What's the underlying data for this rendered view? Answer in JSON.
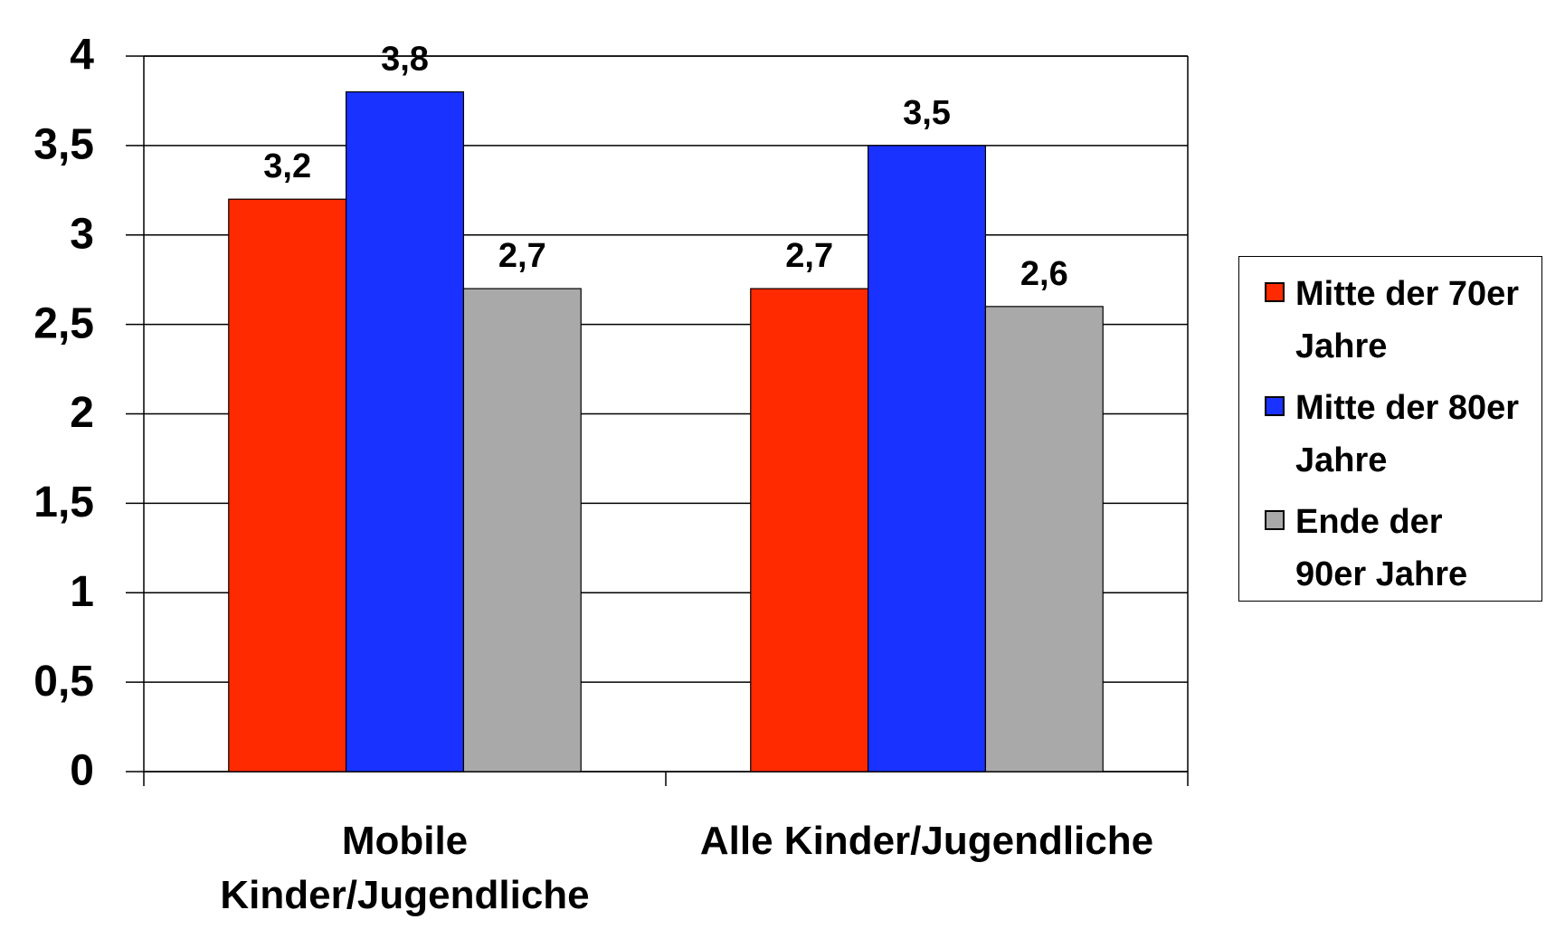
{
  "chart_data": {
    "type": "bar",
    "categories": [
      "Mobile Kinder/Jugendliche",
      "Alle Kinder/Jugendliche"
    ],
    "series": [
      {
        "name": "Mitte der 70er Jahre",
        "color": "#ff2a00",
        "values": [
          3.2,
          2.7
        ],
        "value_labels": [
          "3,2",
          "2,7"
        ]
      },
      {
        "name": "Mitte der 80er Jahre",
        "color": "#1a32ff",
        "values": [
          3.8,
          3.5
        ],
        "value_labels": [
          "3,8",
          "3,5"
        ]
      },
      {
        "name": "Ende der 90er Jahre",
        "color": "#a9a9a9",
        "values": [
          2.7,
          2.6
        ],
        "value_labels": [
          "2,7",
          "2,6"
        ]
      }
    ],
    "ylim": [
      0,
      4
    ],
    "yticks": [
      0,
      {
        "value": 0.5,
        "label": "0,5"
      },
      1,
      {
        "value": 1.5,
        "label": "1,5"
      },
      2,
      {
        "value": 2.5,
        "label": "2,5"
      },
      3,
      {
        "value": 3.5,
        "label": "3,5"
      },
      4
    ],
    "grid": true,
    "legend": "right"
  }
}
